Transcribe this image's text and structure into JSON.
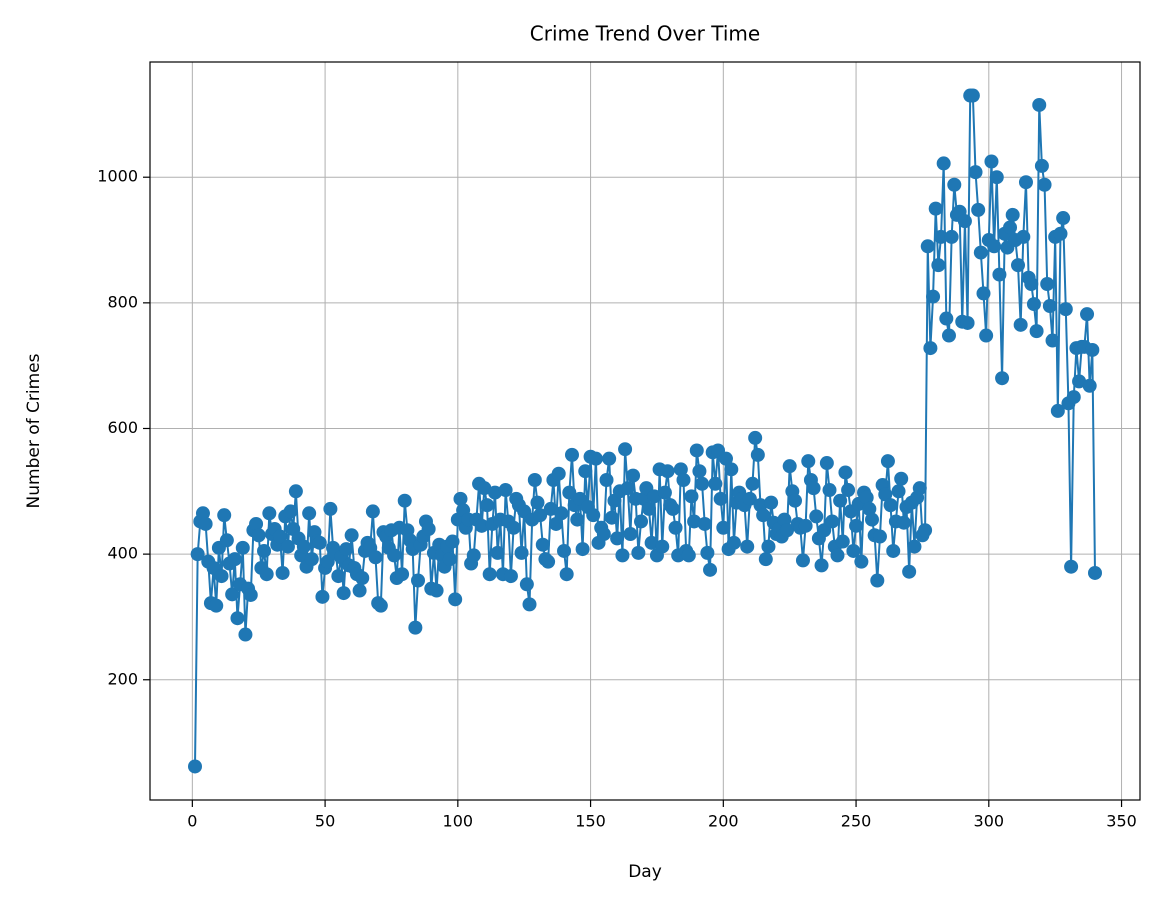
{
  "chart_data": {
    "type": "line",
    "title": "Crime Trend Over Time",
    "x_label": "Day",
    "y_label": "Number of Crimes",
    "x": [
      1,
      2,
      3,
      4,
      5,
      6,
      7,
      8,
      9,
      10,
      11,
      12,
      13,
      14,
      15,
      16,
      17,
      18,
      19,
      20,
      21,
      22,
      23,
      24,
      25,
      26,
      27,
      28,
      29,
      30,
      31,
      32,
      33,
      34,
      35,
      36,
      37,
      38,
      39,
      40,
      41,
      42,
      43,
      44,
      45,
      46,
      47,
      48,
      49,
      50,
      51,
      52,
      53,
      54,
      55,
      56,
      57,
      58,
      59,
      60,
      61,
      62,
      63,
      64,
      65,
      66,
      67,
      68,
      69,
      70,
      71,
      72,
      73,
      74,
      75,
      76,
      77,
      78,
      79,
      80,
      81,
      82,
      83,
      84,
      85,
      86,
      87,
      88,
      89,
      90,
      91,
      92,
      93,
      94,
      95,
      96,
      97,
      98,
      99,
      100,
      101,
      102,
      103,
      104,
      105,
      106,
      107,
      108,
      109,
      110,
      111,
      112,
      113,
      114,
      115,
      116,
      117,
      118,
      119,
      120,
      121,
      122,
      123,
      124,
      125,
      126,
      127,
      128,
      129,
      130,
      131,
      132,
      133,
      134,
      135,
      136,
      137,
      138,
      139,
      140,
      141,
      142,
      143,
      144,
      145,
      146,
      147,
      148,
      149,
      150,
      151,
      152,
      153,
      154,
      155,
      156,
      157,
      158,
      159,
      160,
      161,
      162,
      163,
      164,
      165,
      166,
      167,
      168,
      169,
      170,
      171,
      172,
      173,
      174,
      175,
      176,
      177,
      178,
      179,
      180,
      181,
      182,
      183,
      184,
      185,
      186,
      187,
      188,
      189,
      190,
      191,
      192,
      193,
      194,
      195,
      196,
      197,
      198,
      199,
      200,
      201,
      202,
      203,
      204,
      205,
      206,
      207,
      208,
      209,
      210,
      211,
      212,
      213,
      214,
      215,
      216,
      217,
      218,
      219,
      220,
      221,
      222,
      223,
      224,
      225,
      226,
      227,
      228,
      229,
      230,
      231,
      232,
      233,
      234,
      235,
      236,
      237,
      238,
      239,
      240,
      241,
      242,
      243,
      244,
      245,
      246,
      247,
      248,
      249,
      250,
      251,
      252,
      253,
      254,
      255,
      256,
      257,
      258,
      259,
      260,
      261,
      262,
      263,
      264,
      265,
      266,
      267,
      268,
      269,
      270,
      271,
      272,
      273,
      274,
      275,
      276,
      277,
      278,
      279,
      280,
      281,
      282,
      283,
      284,
      285,
      286,
      287,
      288,
      289,
      290,
      291,
      292,
      293,
      294,
      295,
      296,
      297,
      298,
      299,
      300,
      301,
      302,
      303,
      304,
      305,
      306,
      307,
      308,
      309,
      310,
      311,
      312,
      313,
      314,
      315,
      316,
      317,
      318,
      319,
      320,
      321,
      322,
      323,
      324,
      325,
      326,
      327,
      328,
      329,
      330,
      331,
      332,
      333,
      334,
      335,
      336,
      337,
      338,
      339,
      340
    ],
    "series": [
      {
        "name": "Crimes",
        "color": "#1f77b4",
        "values": [
          62,
          400,
          452,
          465,
          448,
          388,
          322,
          378,
          318,
          410,
          365,
          462,
          422,
          385,
          336,
          392,
          298,
          352,
          410,
          272,
          345,
          335,
          438,
          448,
          430,
          378,
          405,
          368,
          465,
          432,
          440,
          415,
          428,
          370,
          460,
          412,
          468,
          440,
          500,
          425,
          398,
          412,
          380,
          465,
          392,
          435,
          420,
          418,
          332,
          378,
          388,
          472,
          410,
          402,
          365,
          395,
          338,
          408,
          382,
          430,
          378,
          368,
          342,
          362,
          405,
          418,
          410,
          468,
          395,
          322,
          318,
          435,
          428,
          410,
          438,
          398,
          362,
          442,
          368,
          485,
          438,
          422,
          408,
          283,
          358,
          415,
          428,
          452,
          440,
          345,
          402,
          342,
          415,
          398,
          380,
          412,
          392,
          420,
          328,
          455,
          488,
          470,
          442,
          455,
          385,
          398,
          455,
          512,
          445,
          505,
          478,
          368,
          448,
          498,
          402,
          455,
          368,
          502,
          452,
          365,
          442,
          488,
          478,
          402,
          468,
          352,
          320,
          455,
          518,
          482,
          462,
          415,
          392,
          388,
          472,
          518,
          448,
          528,
          465,
          405,
          368,
          498,
          558,
          478,
          455,
          488,
          408,
          532,
          475,
          555,
          462,
          552,
          418,
          442,
          432,
          518,
          552,
          458,
          485,
          425,
          500,
          398,
          567,
          505,
          432,
          525,
          488,
          402,
          452,
          488,
          505,
          472,
          418,
          492,
          398,
          535,
          412,
          498,
          532,
          478,
          472,
          442,
          398,
          535,
          518,
          405,
          398,
          492,
          452,
          565,
          532,
          512,
          448,
          402,
          375,
          562,
          512,
          565,
          488,
          442,
          552,
          408,
          535,
          418,
          482,
          498,
          488,
          478,
          412,
          488,
          512,
          585,
          558,
          478,
          462,
          392,
          412,
          482,
          450,
          432,
          440,
          428,
          455,
          438,
          540,
          500,
          485,
          448,
          442,
          390,
          445,
          548,
          518,
          505,
          460,
          425,
          382,
          438,
          545,
          502,
          452,
          412,
          398,
          485,
          420,
          530,
          502,
          468,
          405,
          445,
          480,
          388,
          498,
          490,
          472,
          455,
          430,
          358,
          428,
          510,
          495,
          548,
          478,
          405,
          452,
          500,
          520,
          450,
          475,
          372,
          482,
          412,
          490,
          505,
          430,
          438,
          890,
          728,
          810,
          950,
          860,
          905,
          1022,
          775,
          748,
          905,
          988,
          940,
          945,
          770,
          930,
          768,
          1130,
          1130,
          1008,
          948,
          880,
          815,
          748,
          900,
          1025,
          890,
          1000,
          845,
          680,
          910,
          888,
          920,
          940,
          900,
          860,
          765,
          905,
          992,
          840,
          830,
          798,
          755,
          1115,
          1018,
          988,
          830,
          795,
          740,
          905,
          628,
          910,
          935,
          790,
          640,
          380,
          650,
          728,
          675,
          730,
          730,
          782,
          668,
          725,
          370
        ]
      }
    ],
    "xlim": [
      -15.95,
      356.95
    ],
    "ylim": [
      8.6,
      1183.4
    ],
    "xticks": [
      0,
      50,
      100,
      150,
      200,
      250,
      300,
      350
    ],
    "yticks": [
      200,
      400,
      600,
      800,
      1000
    ],
    "grid": true
  }
}
